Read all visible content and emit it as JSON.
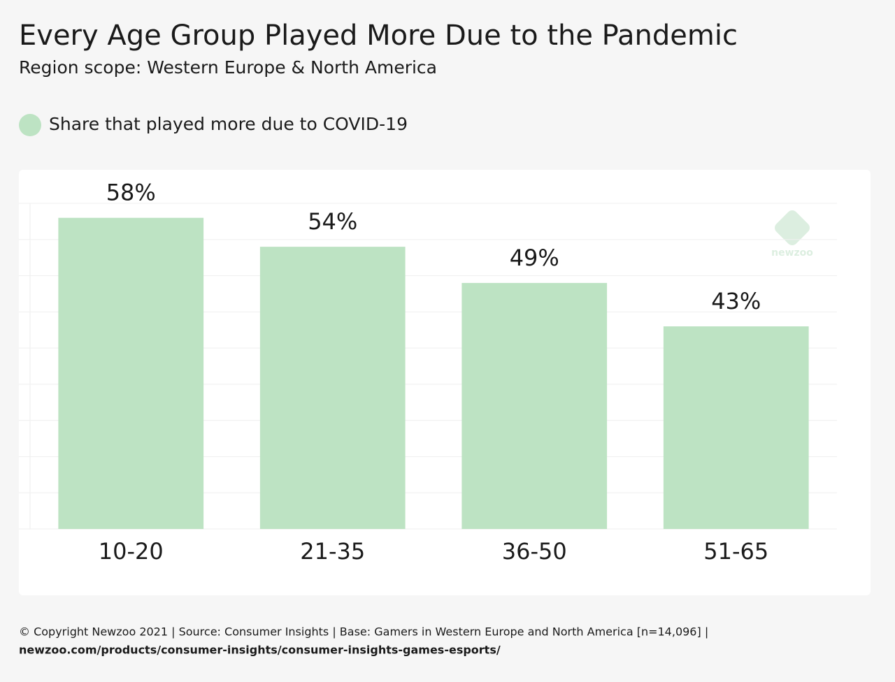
{
  "chart_data": {
    "type": "bar",
    "title": "Every Age Group Played More Due to the Pandemic",
    "subtitle": "Region scope: Western Europe & North America",
    "legend": "Share that played more due to COVID-19",
    "color": "#bde3c3",
    "categories": [
      "10-20",
      "21-35",
      "36-50",
      "51-65"
    ],
    "values": [
      58,
      54,
      49,
      43
    ],
    "value_labels": [
      "58%",
      "54%",
      "49%",
      "43%"
    ],
    "ylim": [
      15,
      60
    ],
    "yticks": [
      15,
      20,
      25,
      30,
      35,
      40,
      45,
      50,
      55,
      60
    ],
    "grid": true,
    "logo": "newzoo",
    "footer": [
      "© Copyright Newzoo 2021 | Source: Consumer Insights | Base: Gamers in Western Europe and North America [n=14,096] |",
      "newzoo.com/products/consumer-insights/consumer-insights-games-esports/"
    ]
  }
}
